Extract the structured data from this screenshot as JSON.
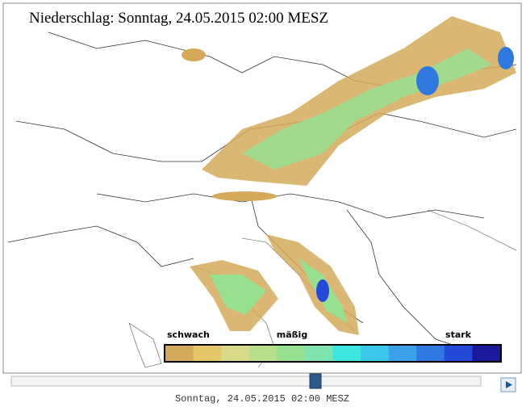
{
  "map": {
    "title": "Niederschlag: Sonntag, 24.05.2015 02:00  MESZ",
    "legend": {
      "labels": [
        "schwach",
        "mäßig",
        "stark"
      ],
      "colors": [
        "#d4aa5a",
        "#e6c66a",
        "#d9d98a",
        "#b8e08c",
        "#96e090",
        "#7fe3b0",
        "#3ee6e0",
        "#3cc8e8",
        "#3aa0e8",
        "#2f78e0",
        "#2448d8",
        "#1a1a9a"
      ]
    },
    "timestamp": "Sonntag, 24.05.2015 02:00 MESZ"
  }
}
